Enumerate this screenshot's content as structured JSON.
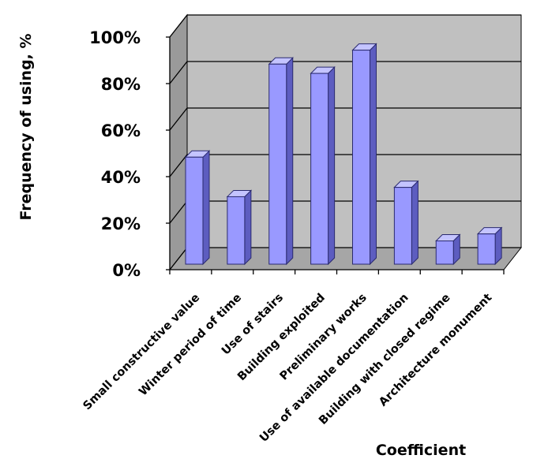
{
  "chart_data": {
    "type": "bar",
    "style": "3d-column",
    "title": "",
    "xlabel": "Coefficient",
    "ylabel": "Frequency of using, %",
    "ylim": [
      0,
      100
    ],
    "yticks": [
      "0%",
      "20%",
      "40%",
      "60%",
      "80%",
      "100%"
    ],
    "grid": true,
    "categories": [
      "Small constructive value",
      "Winter period of time",
      "Use of stairs",
      "Building exploited",
      "Preliminary works",
      "Use of available documentation",
      "Building with closed regime",
      "Architecture monument"
    ],
    "values": [
      46,
      29,
      86,
      82,
      92,
      33,
      10,
      13
    ],
    "colors": {
      "bar_front": "#9999ff",
      "bar_side": "#5d5dc0",
      "bar_top": "#c4c4ff",
      "bar_stroke": "#2a2a6e",
      "wall": "#c0c0c0",
      "floor": "#a6a6a6",
      "left_wall": "#9a9a9a",
      "grid": "#000000"
    }
  }
}
